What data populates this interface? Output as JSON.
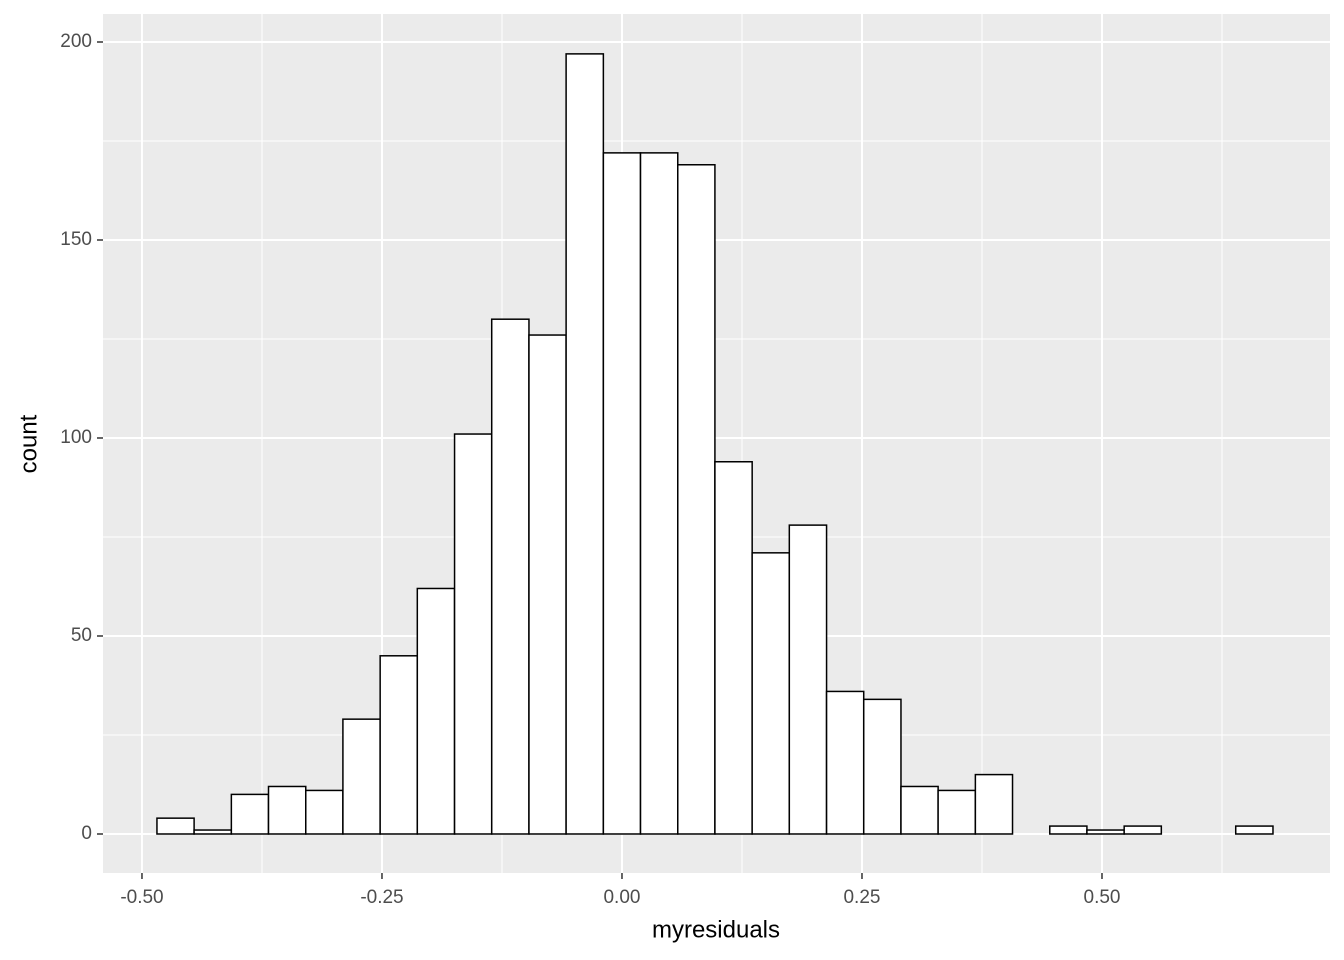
{
  "chart_data": {
    "type": "histogram",
    "x_label": "myresiduals",
    "y_label": "count",
    "bins": [
      -0.4844,
      -0.4457,
      -0.4069,
      -0.3682,
      -0.3294,
      -0.2907,
      -0.2519,
      -0.2132,
      -0.1744,
      -0.1357,
      -0.0969,
      -0.0582,
      -0.0194,
      0.0193,
      0.0581,
      0.0968,
      0.1356,
      0.1743,
      0.2131,
      0.2518,
      0.2906,
      0.3293,
      0.3681,
      0.4068,
      0.4456,
      0.4843,
      0.5231,
      0.5618,
      0.6006,
      0.6393,
      0.6781
    ],
    "values": [
      4,
      1,
      10,
      12,
      11,
      29,
      45,
      62,
      101,
      130,
      126,
      197,
      172,
      172,
      169,
      94,
      71,
      78,
      36,
      34,
      12,
      11,
      15,
      0,
      2,
      1,
      2,
      0,
      0,
      2
    ],
    "color": "#ffffff",
    "edge_color": "#000000",
    "background": "#ebebeb",
    "xlim": [
      -0.5406,
      0.7375
    ],
    "ylim": [
      -9.85,
      207.07
    ],
    "xticks": [
      {
        "value": -0.5,
        "label": "-0.50"
      },
      {
        "value": -0.25,
        "label": "-0.25"
      },
      {
        "value": 0,
        "label": "0.00"
      },
      {
        "value": 0.25,
        "label": "0.25"
      },
      {
        "value": 0.5,
        "label": "0.50"
      }
    ],
    "yticks": [
      0,
      50,
      100,
      150,
      200
    ],
    "x_minor_grid": [
      -0.375,
      -0.125,
      0.125,
      0.375,
      0.625
    ],
    "y_minor_grid": [
      25,
      75,
      125,
      175
    ],
    "grid": true
  }
}
